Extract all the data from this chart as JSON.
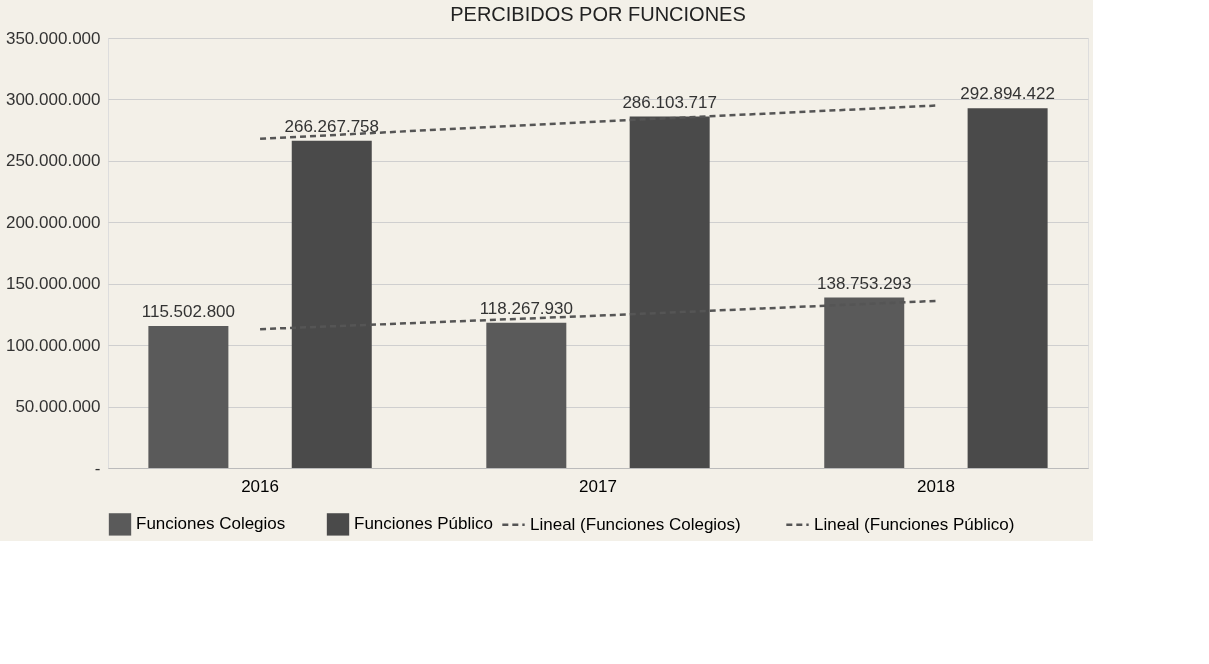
{
  "chart_data": {
    "type": "bar",
    "title": "PERCIBIDOS POR FUNCIONES",
    "categories": [
      "2016",
      "2017",
      "2018"
    ],
    "series": [
      {
        "name": "Funciones Colegios",
        "color": "#5a5a5a",
        "values": [
          115502800,
          118267930,
          138753293
        ],
        "value_labels": [
          "115.502.800",
          "118.267.930",
          "138.753.293"
        ]
      },
      {
        "name": "Funciones Público",
        "color": "#4a4a4a",
        "values": [
          266267758,
          286103717,
          292894422
        ],
        "value_labels": [
          "266.267.758",
          "286.103.717",
          "292.894.422"
        ]
      },
      {
        "name": "Lineal (Funciones Colegios)",
        "type": "line",
        "line_style": "dashed",
        "color": "#555555",
        "values": [
          113000000,
          124000000,
          136000000
        ]
      },
      {
        "name": "Lineal (Funciones Público)",
        "type": "line",
        "line_style": "dashed",
        "color": "#555555",
        "values": [
          268000000,
          282000000,
          295000000
        ]
      }
    ],
    "ylim": [
      0,
      350000000
    ],
    "yticks": [
      {
        "value": 0,
        "label": "-"
      },
      {
        "value": 50000000,
        "label": "50.000.000"
      },
      {
        "value": 100000000,
        "label": "100.000.000"
      },
      {
        "value": 150000000,
        "label": "150.000.000"
      },
      {
        "value": 200000000,
        "label": "200.000.000"
      },
      {
        "value": 250000000,
        "label": "250.000.000"
      },
      {
        "value": 300000000,
        "label": "300.000.000"
      },
      {
        "value": 350000000,
        "label": "350.000.000"
      }
    ],
    "grid": "y",
    "legend": "bottom"
  }
}
